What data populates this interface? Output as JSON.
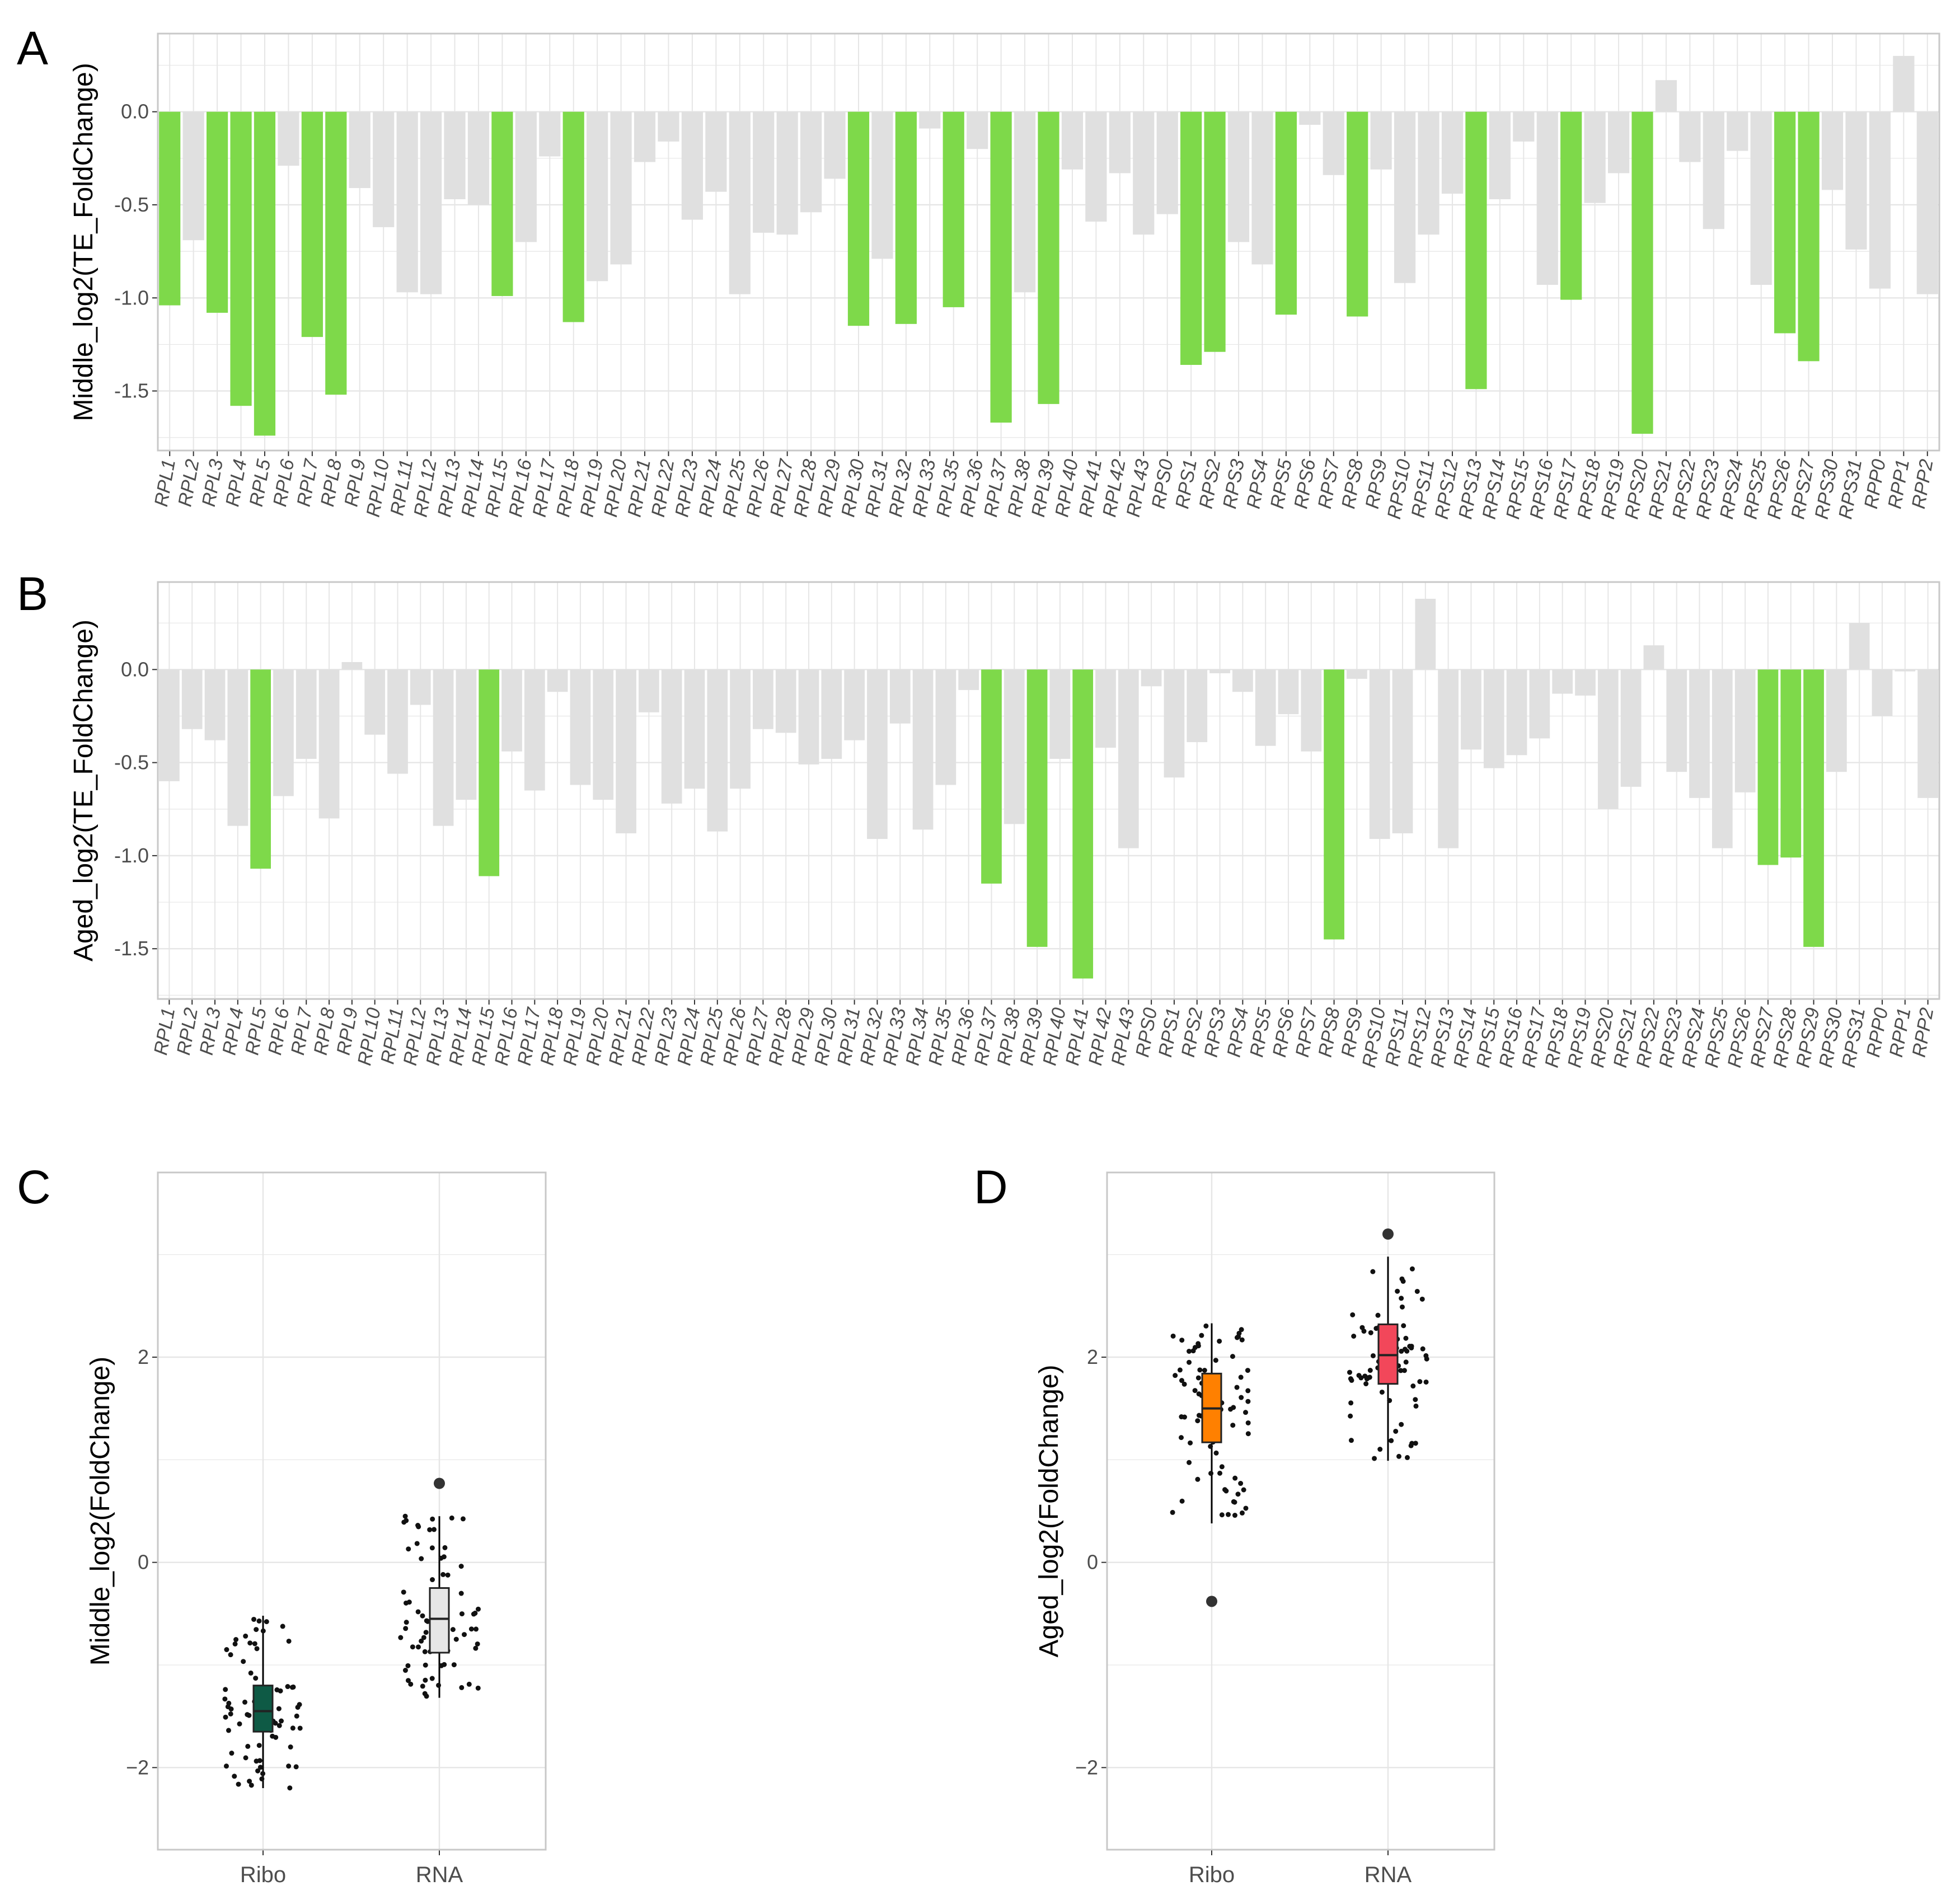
{
  "colors": {
    "highlight": "#7ED94A",
    "other": "#E0E0E0",
    "grid": "#E6E6E6",
    "frame": "#C8C8C8",
    "boxC_ribo": "#0E5A45",
    "boxC_rna": "#E6E6E6",
    "boxD_ribo": "#FF8000",
    "boxD_rna": "#F2475A"
  },
  "chart_data": [
    {
      "panel": "A",
      "type": "bar",
      "title": "",
      "ylabel": "Middle_log2(TE_FoldChange)",
      "ylim": [
        -1.82,
        0.42
      ],
      "yticks": [
        0.0,
        -0.5,
        -1.0,
        -1.5
      ],
      "ytick_labels": [
        "0.0",
        "-0.5",
        "-1.0",
        "-1.5"
      ],
      "categories": [
        "RPL1",
        "RPL2",
        "RPL3",
        "RPL4",
        "RPL5",
        "RPL6",
        "RPL7",
        "RPL8",
        "RPL9",
        "RPL10",
        "RPL11",
        "RPL12",
        "RPL13",
        "RPL14",
        "RPL15",
        "RPL16",
        "RPL17",
        "RPL18",
        "RPL19",
        "RPL20",
        "RPL21",
        "RPL22",
        "RPL23",
        "RPL24",
        "RPL25",
        "RPL26",
        "RPL27",
        "RPL28",
        "RPL29",
        "RPL30",
        "RPL31",
        "RPL32",
        "RPL33",
        "RPL35",
        "RPL36",
        "RPL37",
        "RPL38",
        "RPL39",
        "RPL40",
        "RPL41",
        "RPL42",
        "RPL43",
        "RPS0",
        "RPS1",
        "RPS2",
        "RPS3",
        "RPS4",
        "RPS5",
        "RPS6",
        "RPS7",
        "RPS8",
        "RPS9",
        "RPS10",
        "RPS11",
        "RPS12",
        "RPS13",
        "RPS14",
        "RPS15",
        "RPS16",
        "RPS17",
        "RPS18",
        "RPS19",
        "RPS20",
        "RPS21",
        "RPS22",
        "RPS23",
        "RPS24",
        "RPS25",
        "RPS26",
        "RPS27",
        "RPS30",
        "RPS31",
        "RPP0",
        "RPP1",
        "RPP2"
      ],
      "values": [
        -1.04,
        -0.69,
        -1.08,
        -1.58,
        -1.74,
        -0.29,
        -1.21,
        -1.52,
        -0.41,
        -0.62,
        -0.97,
        -0.98,
        -0.47,
        -0.5,
        -0.99,
        -0.7,
        -0.24,
        -1.13,
        -0.91,
        -0.82,
        -0.27,
        -0.16,
        -0.58,
        -0.43,
        -0.98,
        -0.65,
        -0.66,
        -0.54,
        -0.36,
        -1.15,
        -0.79,
        -1.14,
        -0.09,
        -1.05,
        -0.2,
        -1.67,
        -0.97,
        -1.57,
        -0.31,
        -0.59,
        -0.33,
        -0.66,
        -0.55,
        -1.36,
        -1.29,
        -0.7,
        -0.82,
        -1.09,
        -0.07,
        -0.34,
        -1.1,
        -0.31,
        -0.92,
        -0.66,
        -0.44,
        -1.49,
        -0.47,
        -0.16,
        -0.93,
        -1.01,
        -0.49,
        -0.33,
        -1.73,
        0.17,
        -0.27,
        -0.63,
        -0.21,
        -0.93,
        -1.19,
        -1.34,
        -0.42,
        -0.74,
        -0.95,
        0.3,
        -0.98
      ],
      "highlighted": [
        "RPL1",
        "RPL3",
        "RPL4",
        "RPL5",
        "RPL7",
        "RPL8",
        "RPL15",
        "RPL18",
        "RPL30",
        "RPL32",
        "RPL35",
        "RPL37",
        "RPL39",
        "RPS1",
        "RPS2",
        "RPS5",
        "RPS8",
        "RPS13",
        "RPS17",
        "RPS20",
        "RPS26",
        "RPS27"
      ]
    },
    {
      "panel": "B",
      "type": "bar",
      "title": "",
      "ylabel": "Aged_log2(TE_FoldChange)",
      "ylim": [
        -1.77,
        0.47
      ],
      "yticks": [
        0.0,
        -0.5,
        -1.0,
        -1.5
      ],
      "ytick_labels": [
        "0.0",
        "-0.5",
        "-1.0",
        "-1.5"
      ],
      "categories": [
        "RPL1",
        "RPL2",
        "RPL3",
        "RPL4",
        "RPL5",
        "RPL6",
        "RPL7",
        "RPL8",
        "RPL9",
        "RPL10",
        "RPL11",
        "RPL12",
        "RPL13",
        "RPL14",
        "RPL15",
        "RPL16",
        "RPL17",
        "RPL18",
        "RPL19",
        "RPL20",
        "RPL21",
        "RPL22",
        "RPL23",
        "RPL24",
        "RPL25",
        "RPL26",
        "RPL27",
        "RPL28",
        "RPL29",
        "RPL30",
        "RPL31",
        "RPL32",
        "RPL33",
        "RPL34",
        "RPL35",
        "RPL36",
        "RPL37",
        "RPL38",
        "RPL39",
        "RPL40",
        "RPL41",
        "RPL42",
        "RPL43",
        "RPS0",
        "RPS1",
        "RPS2",
        "RPS3",
        "RPS4",
        "RPS5",
        "RPS6",
        "RPS7",
        "RPS8",
        "RPS9",
        "RPS10",
        "RPS11",
        "RPS12",
        "RPS13",
        "RPS14",
        "RPS15",
        "RPS16",
        "RPS17",
        "RPS18",
        "RPS19",
        "RPS20",
        "RPS21",
        "RPS22",
        "RPS23",
        "RPS24",
        "RPS25",
        "RPS26",
        "RPS27",
        "RPS28",
        "RPS29",
        "RPS30",
        "RPS31",
        "RPP0",
        "RPP1",
        "RPP2"
      ],
      "values": [
        -0.6,
        -0.32,
        -0.38,
        -0.84,
        -1.07,
        -0.68,
        -0.48,
        -0.8,
        0.04,
        -0.35,
        -0.56,
        -0.19,
        -0.84,
        -0.7,
        -1.11,
        -0.44,
        -0.65,
        -0.12,
        -0.62,
        -0.7,
        -0.88,
        -0.23,
        -0.72,
        -0.64,
        -0.87,
        -0.64,
        -0.32,
        -0.34,
        -0.51,
        -0.48,
        -0.38,
        -0.91,
        -0.29,
        -0.86,
        -0.62,
        -0.11,
        -1.15,
        -0.83,
        -1.49,
        -0.48,
        -1.66,
        -0.42,
        -0.96,
        -0.09,
        -0.58,
        -0.39,
        -0.02,
        -0.12,
        -0.41,
        -0.24,
        -0.44,
        -1.45,
        -0.05,
        -0.91,
        -0.88,
        0.38,
        -0.96,
        -0.43,
        -0.53,
        -0.46,
        -0.37,
        -0.13,
        -0.14,
        -0.75,
        -0.63,
        0.13,
        -0.55,
        -0.69,
        -0.96,
        -0.66,
        -1.05,
        -1.01,
        -1.49,
        -0.55,
        0.25,
        -0.25,
        -0.01,
        -0.69
      ],
      "highlighted": [
        "RPL5",
        "RPL15",
        "RPL37",
        "RPL39",
        "RPL41",
        "RPS8",
        "RPS27",
        "RPS28",
        "RPS29"
      ]
    },
    {
      "panel": "C",
      "type": "box",
      "title": "",
      "ylabel": "Middle_log2(FoldChange)",
      "ylim": [
        -2.8,
        3.8
      ],
      "yticks": [
        2,
        0,
        -2
      ],
      "ytick_labels": [
        "2",
        "0",
        "−2"
      ],
      "categories": [
        "Ribo",
        "RNA"
      ],
      "boxes": [
        {
          "name": "Ribo",
          "whisker_low": -2.2,
          "q1": -1.65,
          "median": -1.45,
          "q3": -1.2,
          "whisker_high": -0.52,
          "outliers": []
        },
        {
          "name": "RNA",
          "whisker_low": -1.32,
          "q1": -0.88,
          "median": -0.55,
          "q3": -0.25,
          "whisker_high": 0.45,
          "outliers": [
            0.77
          ]
        }
      ]
    },
    {
      "panel": "D",
      "type": "box",
      "title": "",
      "ylabel": "Aged_log2(FoldChange)",
      "ylim": [
        -2.8,
        3.8
      ],
      "yticks": [
        2,
        0,
        -2
      ],
      "ytick_labels": [
        "2",
        "0",
        "−2"
      ],
      "categories": [
        "Ribo",
        "RNA"
      ],
      "boxes": [
        {
          "name": "Ribo",
          "whisker_low": 0.38,
          "q1": 1.17,
          "median": 1.5,
          "q3": 1.84,
          "whisker_high": 2.33,
          "outliers": [
            -0.38
          ]
        },
        {
          "name": "RNA",
          "whisker_low": 0.99,
          "q1": 1.74,
          "median": 2.02,
          "q3": 2.32,
          "whisker_high": 2.98,
          "outliers": [
            3.2
          ]
        }
      ]
    }
  ]
}
